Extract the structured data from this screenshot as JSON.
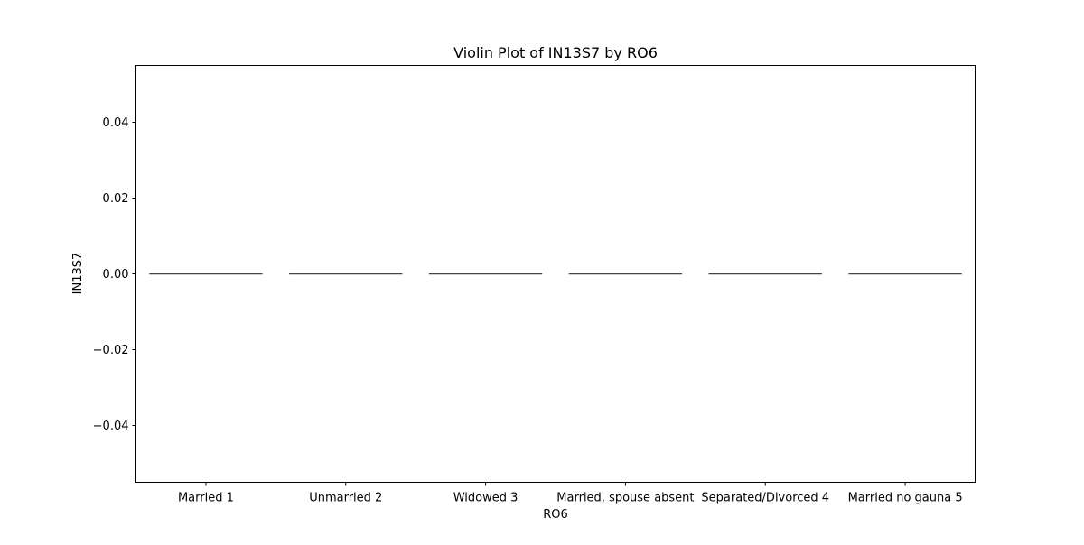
{
  "chart_data": {
    "type": "violin",
    "title": "Violin Plot of IN13S7 by RO6",
    "xlabel": "RO6",
    "ylabel": "IN13S7",
    "categories": [
      "Married 1",
      "Unmarried 2",
      "Widowed 3",
      "Married, spouse absent",
      "Separated/Divorced 4",
      "Married no gauna 5"
    ],
    "values": [
      0.0,
      0.0,
      0.0,
      0.0,
      0.0,
      0.0
    ],
    "ylim": [
      -0.055,
      0.055
    ],
    "yticks": [
      0.04,
      0.02,
      0.0,
      -0.02,
      -0.04
    ],
    "ytick_labels": [
      "0.04",
      "0.02",
      "0.00",
      "−0.02",
      "−0.04"
    ],
    "grid": false,
    "legend": "none",
    "colors": {
      "line": "#444444",
      "axes": "#000000",
      "background": "#ffffff"
    }
  }
}
